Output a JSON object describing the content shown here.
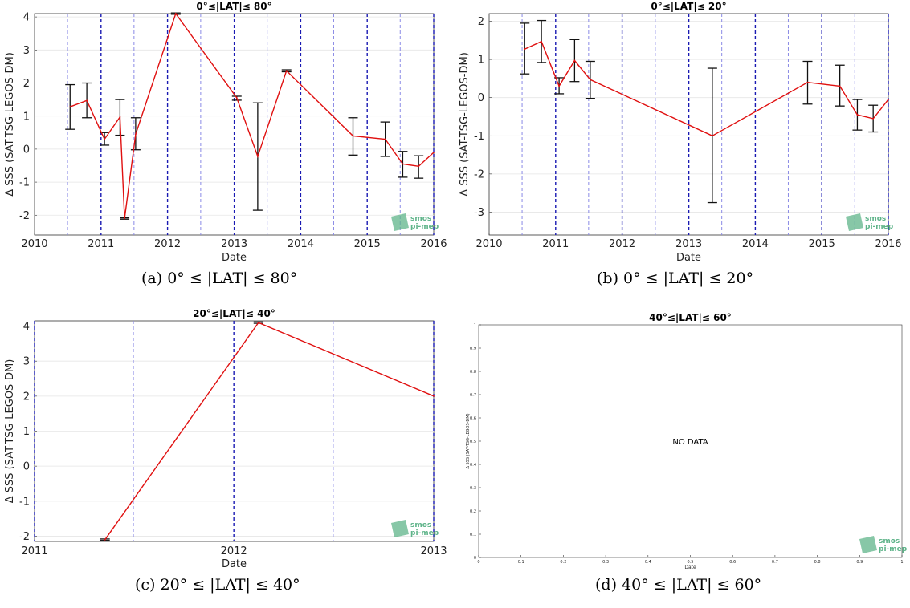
{
  "chart_data": [
    {
      "type": "line",
      "title": "0°≤|LAT|≤ 80°",
      "caption": "(a) 0° ≤ |LAT| ≤ 80°",
      "xlabel": "Date",
      "ylabel": "Δ SSS (SAT-TSG-LEGOS-DM)",
      "xlim": [
        "2010-01-01",
        "2016-01-01"
      ],
      "ylim": [
        -2.6,
        4.1
      ],
      "x_ticks": [
        "2010",
        "2011",
        "2012",
        "2013",
        "2014",
        "2015",
        "2016"
      ],
      "y_ticks": [
        -2,
        -1,
        0,
        1,
        2,
        3,
        4
      ],
      "vlines_dark": [
        "2011-01-01",
        "2012-01-01",
        "2013-01-01",
        "2014-01-01",
        "2015-01-01",
        "2016-01-01"
      ],
      "vlines_light": [
        "2010-07-01",
        "2011-07-01",
        "2012-07-01",
        "2013-07-01",
        "2014-07-01",
        "2015-07-01"
      ],
      "series": [
        {
          "points": [
            {
              "x": "2010-07-15",
              "y": 1.28,
              "lo": 0.6,
              "hi": 1.95
            },
            {
              "x": "2010-10-15",
              "y": 1.47,
              "lo": 0.95,
              "hi": 2.0
            },
            {
              "x": "2011-01-20",
              "y": 0.3,
              "lo": 0.12,
              "hi": 0.5
            },
            {
              "x": "2011-04-15",
              "y": 0.97,
              "lo": 0.42,
              "hi": 1.5
            },
            {
              "x": "2011-05-10",
              "y": -2.1,
              "lo": -2.12,
              "hi": -2.08
            },
            {
              "x": "2011-07-10",
              "y": 0.45,
              "lo": -0.02,
              "hi": 0.95
            },
            {
              "x": "2012-02-15",
              "y": 4.1,
              "lo": 4.08,
              "hi": 4.12
            },
            {
              "x": "2013-01-15",
              "y": 1.55,
              "lo": 1.48,
              "hi": 1.6
            },
            {
              "x": "2013-05-10",
              "y": -0.22,
              "lo": -1.85,
              "hi": 1.4
            },
            {
              "x": "2013-10-15",
              "y": 2.37,
              "lo": 2.34,
              "hi": 2.4
            },
            {
              "x": "2014-10-15",
              "y": 0.4,
              "lo": -0.18,
              "hi": 0.95
            },
            {
              "x": "2015-04-10",
              "y": 0.3,
              "lo": -0.22,
              "hi": 0.82
            },
            {
              "x": "2015-07-15",
              "y": -0.45,
              "lo": -0.85,
              "hi": -0.07
            },
            {
              "x": "2015-10-10",
              "y": -0.52,
              "lo": -0.88,
              "hi": -0.2
            },
            {
              "x": "2016-01-01",
              "y": -0.1
            }
          ]
        }
      ]
    },
    {
      "type": "line",
      "title": "0°≤|LAT|≤ 20°",
      "caption": "(b) 0° ≤ |LAT| ≤ 20°",
      "xlabel": "Date",
      "ylabel": "Δ SSS (SAT-TSG-LEGOS-DM)",
      "xlim": [
        "2010-01-01",
        "2016-01-01"
      ],
      "ylim": [
        -3.6,
        2.2
      ],
      "x_ticks": [
        "2010",
        "2011",
        "2012",
        "2013",
        "2014",
        "2015",
        "2016"
      ],
      "y_ticks": [
        -3,
        -2,
        -1,
        0,
        1,
        2
      ],
      "vlines_dark": [
        "2011-01-01",
        "2012-01-01",
        "2013-01-01",
        "2014-01-01",
        "2015-01-01",
        "2016-01-01"
      ],
      "vlines_light": [
        "2010-07-01",
        "2011-07-01",
        "2012-07-01",
        "2013-07-01",
        "2014-07-01",
        "2015-07-01"
      ],
      "series": [
        {
          "points": [
            {
              "x": "2010-07-15",
              "y": 1.27,
              "lo": 0.62,
              "hi": 1.95
            },
            {
              "x": "2010-10-15",
              "y": 1.47,
              "lo": 0.92,
              "hi": 2.02
            },
            {
              "x": "2011-01-20",
              "y": 0.3,
              "lo": 0.1,
              "hi": 0.52
            },
            {
              "x": "2011-04-15",
              "y": 0.97,
              "lo": 0.42,
              "hi": 1.52
            },
            {
              "x": "2011-07-10",
              "y": 0.47,
              "lo": -0.02,
              "hi": 0.95
            },
            {
              "x": "2013-05-10",
              "y": -1.0,
              "lo": -2.75,
              "hi": 0.77
            },
            {
              "x": "2014-10-15",
              "y": 0.4,
              "lo": -0.17,
              "hi": 0.95
            },
            {
              "x": "2015-04-10",
              "y": 0.3,
              "lo": -0.22,
              "hi": 0.85
            },
            {
              "x": "2015-07-15",
              "y": -0.45,
              "lo": -0.85,
              "hi": -0.05
            },
            {
              "x": "2015-10-10",
              "y": -0.55,
              "lo": -0.9,
              "hi": -0.2
            },
            {
              "x": "2016-01-01",
              "y": -0.05
            }
          ]
        }
      ]
    },
    {
      "type": "line",
      "title": "20°≤|LAT|≤ 40°",
      "caption": "(c) 20° ≤ |LAT| ≤ 40°",
      "xlabel": "Date",
      "ylabel": "Δ SSS (SAT-TSG-LEGOS-DM)",
      "xlim": [
        "2011-01-01",
        "2013-01-01"
      ],
      "ylim": [
        -2.15,
        4.15
      ],
      "x_ticks": [
        "2011",
        "2012",
        "2013"
      ],
      "y_ticks": [
        -2,
        -1,
        0,
        1,
        2,
        3,
        4
      ],
      "vlines_dark": [
        "2011-01-01",
        "2012-01-01",
        "2013-01-01"
      ],
      "vlines_light": [
        "2011-07-01",
        "2012-07-01"
      ],
      "series": [
        {
          "points": [
            {
              "x": "2011-05-10",
              "y": -2.1,
              "lo": -2.12,
              "hi": -2.08
            },
            {
              "x": "2012-02-15",
              "y": 4.1,
              "lo": 4.08,
              "hi": 4.12
            },
            {
              "x": "2013-01-01",
              "y": 2.0
            }
          ]
        }
      ]
    },
    {
      "type": "line",
      "title": "40°≤|LAT|≤ 60°",
      "caption": "(d) 40° ≤ |LAT| ≤ 60°",
      "xlabel": "Date",
      "ylabel": "Δ SSS (SAT-TSG-LEGOS-DM)",
      "xlim": [
        0,
        1
      ],
      "ylim": [
        0,
        1
      ],
      "x_ticks": [
        "0",
        "0.1",
        "0.2",
        "0.3",
        "0.4",
        "0.5",
        "0.6",
        "0.7",
        "0.8",
        "0.9",
        "1"
      ],
      "y_ticks": [
        "0",
        "0.1",
        "0.2",
        "0.3",
        "0.4",
        "0.5",
        "0.6",
        "0.7",
        "0.8",
        "0.9",
        "1"
      ],
      "annotation": "NO DATA",
      "series": []
    }
  ],
  "logo": {
    "line1": "smos",
    "line2": "pi-mep",
    "color": "#5fb48a"
  }
}
